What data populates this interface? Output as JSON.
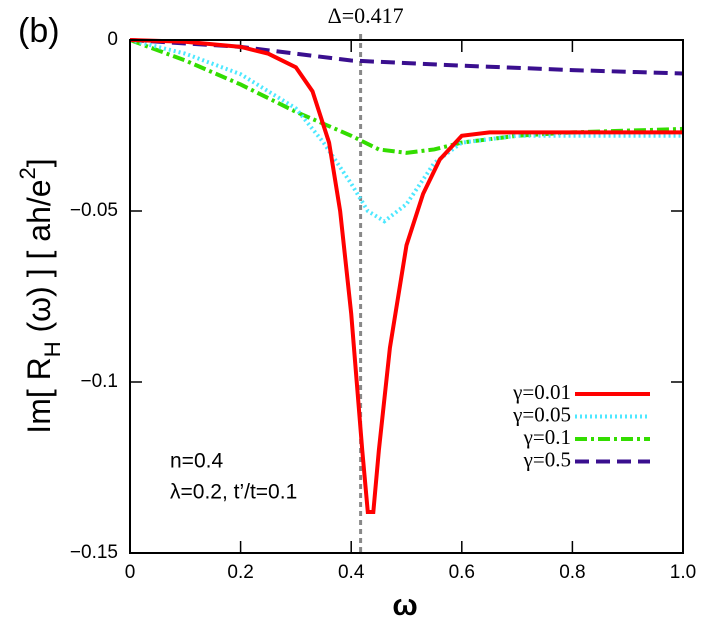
{
  "chart_data": {
    "type": "line",
    "panel_label": "(b)",
    "xlabel": "ω",
    "ylabel": [
      "Im[ R",
      "H",
      " (ω) ] [ ah/e",
      "2",
      "]"
    ],
    "xlim": [
      0,
      1.0
    ],
    "ylim": [
      -0.15,
      0
    ],
    "xticks": [
      0,
      0.2,
      0.4,
      0.6,
      0.8,
      {
        "value": 1.0,
        "label": "1.0"
      }
    ],
    "yticks": [
      {
        "value": 0,
        "label": "0"
      },
      {
        "value": -0.05,
        "label": "−0.05"
      },
      {
        "value": -0.1,
        "label": "−0.1"
      },
      {
        "value": -0.15,
        "label": "−0.15"
      }
    ],
    "vline": {
      "x": 0.417,
      "label": "Δ=0.417",
      "color": "#888888"
    },
    "annotations": [
      "n=0.4",
      "λ=0.2, t’/t=0.1"
    ],
    "legend_position": "lower right",
    "series": [
      {
        "name": "γ=0.01",
        "color": "#ff0000",
        "dash": "solid",
        "x": [
          0,
          0.1,
          0.2,
          0.25,
          0.3,
          0.33,
          0.36,
          0.38,
          0.4,
          0.42,
          0.43,
          0.44,
          0.45,
          0.47,
          0.5,
          0.53,
          0.56,
          0.6,
          0.65,
          0.7,
          0.8,
          0.9,
          1.0
        ],
        "values": [
          0,
          -0.0005,
          -0.002,
          -0.004,
          -0.008,
          -0.015,
          -0.03,
          -0.05,
          -0.08,
          -0.12,
          -0.138,
          -0.138,
          -0.12,
          -0.09,
          -0.06,
          -0.045,
          -0.035,
          -0.028,
          -0.027,
          -0.027,
          -0.027,
          -0.027,
          -0.027
        ]
      },
      {
        "name": "γ=0.05",
        "color": "#4de8ff",
        "dash": "dotted",
        "x": [
          0,
          0.1,
          0.2,
          0.3,
          0.35,
          0.4,
          0.43,
          0.46,
          0.5,
          0.55,
          0.6,
          0.7,
          0.8,
          1.0
        ],
        "values": [
          0,
          -0.004,
          -0.01,
          -0.02,
          -0.03,
          -0.042,
          -0.05,
          -0.053,
          -0.048,
          -0.036,
          -0.03,
          -0.028,
          -0.028,
          -0.028
        ]
      },
      {
        "name": "γ=0.1",
        "color": "#33dd00",
        "dash": "dashdot",
        "x": [
          0,
          0.1,
          0.2,
          0.3,
          0.4,
          0.45,
          0.5,
          0.55,
          0.6,
          0.7,
          0.8,
          1.0
        ],
        "values": [
          0,
          -0.006,
          -0.013,
          -0.021,
          -0.028,
          -0.032,
          -0.033,
          -0.032,
          -0.03,
          -0.028,
          -0.027,
          -0.026
        ]
      },
      {
        "name": "γ=0.5",
        "color": "#3a0f8f",
        "dash": "dashed",
        "x": [
          0,
          0.2,
          0.4,
          0.6,
          0.8,
          1.0
        ],
        "values": [
          0,
          -0.002,
          -0.006,
          -0.0075,
          -0.0088,
          -0.0098
        ]
      }
    ]
  }
}
